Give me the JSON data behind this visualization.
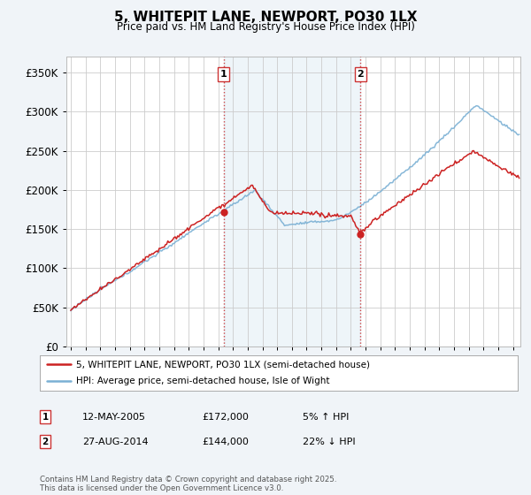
{
  "title": "5, WHITEPIT LANE, NEWPORT, PO30 1LX",
  "subtitle": "Price paid vs. HM Land Registry's House Price Index (HPI)",
  "ylim": [
    0,
    370000
  ],
  "yticks": [
    0,
    50000,
    100000,
    150000,
    200000,
    250000,
    300000,
    350000
  ],
  "ytick_labels": [
    "£0",
    "£50K",
    "£100K",
    "£150K",
    "£200K",
    "£250K",
    "£300K",
    "£350K"
  ],
  "background_color": "#f0f4f8",
  "plot_bg_color": "#ffffff",
  "hpi_color": "#7ab0d4",
  "price_color": "#cc2222",
  "vline_color": "#cc3333",
  "marker1_year": 2005.37,
  "marker1_price": 172000,
  "marker2_year": 2014.65,
  "marker2_price": 144000,
  "legend_line1": "5, WHITEPIT LANE, NEWPORT, PO30 1LX (semi-detached house)",
  "legend_line2": "HPI: Average price, semi-detached house, Isle of Wight",
  "table_row1": [
    "1",
    "12-MAY-2005",
    "£172,000",
    "5% ↑ HPI"
  ],
  "table_row2": [
    "2",
    "27-AUG-2014",
    "£144,000",
    "22% ↓ HPI"
  ],
  "footnote": "Contains HM Land Registry data © Crown copyright and database right 2025.\nThis data is licensed under the Open Government Licence v3.0.",
  "xstart": 1995,
  "xend": 2025
}
